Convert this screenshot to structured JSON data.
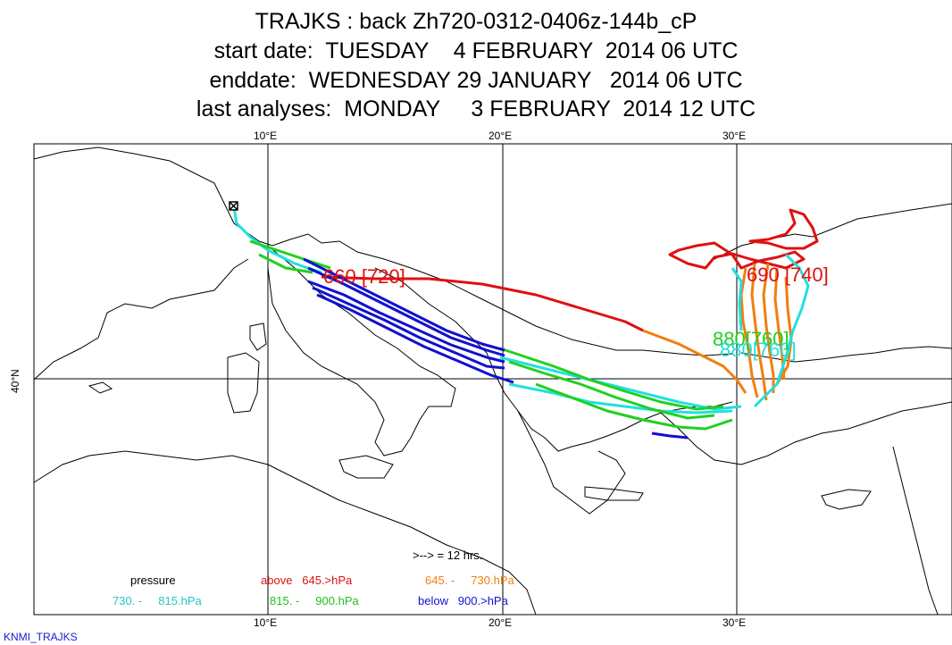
{
  "header": {
    "line1": "TRAJKS : back Zh720-0312-0406z-144b_cP",
    "line2": "start date:  TUESDAY    4 FEBRUARY  2014 06 UTC",
    "line3": "enddate:  WEDNESDAY 29 JANUARY   2014 06 UTC",
    "line4": "last analyses:  MONDAY     3 FEBRUARY  2014 12 UTC"
  },
  "axes": {
    "top_ticks": [
      "10°E",
      "20°E",
      "30°E"
    ],
    "bottom_ticks": [
      "10°E",
      "20°E",
      "30°E"
    ],
    "left_tick": "40°N"
  },
  "map_labels": {
    "label_720": "660 [720]",
    "label_740": "690 [740]",
    "label_overlap": "880[760]"
  },
  "legend": {
    "arrow_note": ">--> = 12 hrs.",
    "pressure": "pressure",
    "above": "above   645.>hPa",
    "range_645_730": "645. -     730.hPa",
    "range_730_815": "730. -     815.hPa",
    "range_815_900": "815. -     900.hPa",
    "below": "below   900.>hPa"
  },
  "colors": {
    "above": "#e01010",
    "range_645_730": "#f07f10",
    "range_730_815": "#20e0e0",
    "range_815_900": "#20d020",
    "below": "#1010d0"
  },
  "footer": "KNMI_TRAJKS"
}
